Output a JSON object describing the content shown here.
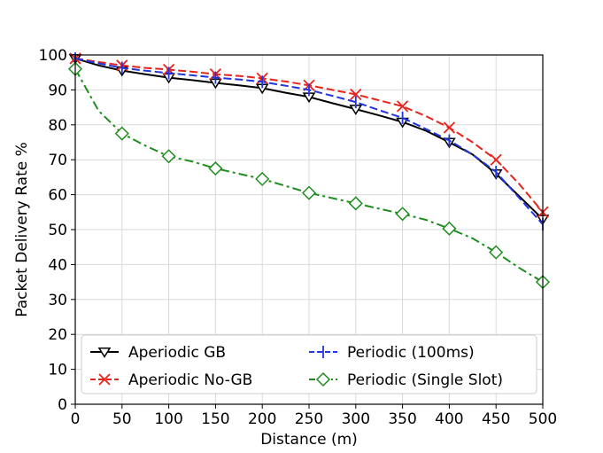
{
  "chart_data": {
    "type": "line",
    "title": "",
    "xlabel": "Distance (m)",
    "ylabel": "Packet Delivery Rate %",
    "xlim": [
      0,
      500
    ],
    "ylim": [
      0,
      100
    ],
    "x_ticks": [
      0,
      50,
      100,
      150,
      200,
      250,
      300,
      350,
      400,
      450,
      500
    ],
    "y_ticks": [
      0,
      10,
      20,
      30,
      40,
      50,
      60,
      70,
      80,
      90,
      100
    ],
    "grid": true,
    "legend_position": "bottom",
    "series": [
      {
        "name": "Aperiodic GB",
        "color": "#000000",
        "line_style": "solid",
        "marker": "triangle-down",
        "x": [
          0,
          25,
          50,
          75,
          100,
          125,
          150,
          175,
          200,
          225,
          250,
          275,
          300,
          325,
          350,
          375,
          400,
          425,
          450,
          475,
          500
        ],
        "y": [
          99,
          97,
          95.5,
          94.5,
          93.5,
          92.8,
          92,
          91.3,
          90.5,
          89.2,
          88,
          86.2,
          84.5,
          82.7,
          80.8,
          78.3,
          75,
          71.5,
          66,
          59.5,
          53
        ]
      },
      {
        "name": "Aperiodic No-GB",
        "color": "#e8231c",
        "line_style": "dashed",
        "marker": "x",
        "x": [
          0,
          25,
          50,
          75,
          100,
          125,
          150,
          175,
          200,
          225,
          250,
          275,
          300,
          325,
          350,
          375,
          400,
          425,
          450,
          475,
          500
        ],
        "y": [
          99,
          98,
          97,
          96.3,
          95.8,
          95.2,
          94.5,
          94,
          93.3,
          92.4,
          91.3,
          90,
          88.7,
          87,
          85.3,
          82.5,
          79.2,
          75,
          70,
          63,
          55
        ]
      },
      {
        "name": "Periodic (100ms)",
        "color": "#1f35e0",
        "line_style": "dashed",
        "marker": "vline",
        "x": [
          0,
          25,
          50,
          75,
          100,
          125,
          150,
          175,
          200,
          225,
          250,
          275,
          300,
          325,
          350,
          375,
          400,
          425,
          450,
          475,
          500
        ],
        "y": [
          99,
          97.6,
          96.3,
          95.5,
          94.8,
          94.2,
          93.5,
          93,
          92.3,
          91.2,
          90,
          88.3,
          86.5,
          84.2,
          82,
          78.8,
          75.5,
          71.5,
          66.5,
          59,
          51.5
        ]
      },
      {
        "name": "Periodic (Single Slot)",
        "color": "#1e8c1e",
        "line_style": "dashdot",
        "marker": "diamond-open",
        "x": [
          0,
          25,
          50,
          75,
          100,
          125,
          150,
          175,
          200,
          225,
          250,
          275,
          300,
          325,
          350,
          375,
          400,
          425,
          450,
          475,
          500
        ],
        "y": [
          96,
          84,
          77.5,
          74,
          71,
          69.5,
          67.5,
          66,
          64.5,
          62.5,
          60.5,
          59,
          57.5,
          56,
          54.5,
          52.8,
          50.3,
          47.5,
          43.5,
          39,
          35
        ]
      }
    ],
    "marker_x": [
      0,
      50,
      100,
      150,
      200,
      250,
      300,
      350,
      400,
      450,
      500
    ]
  }
}
